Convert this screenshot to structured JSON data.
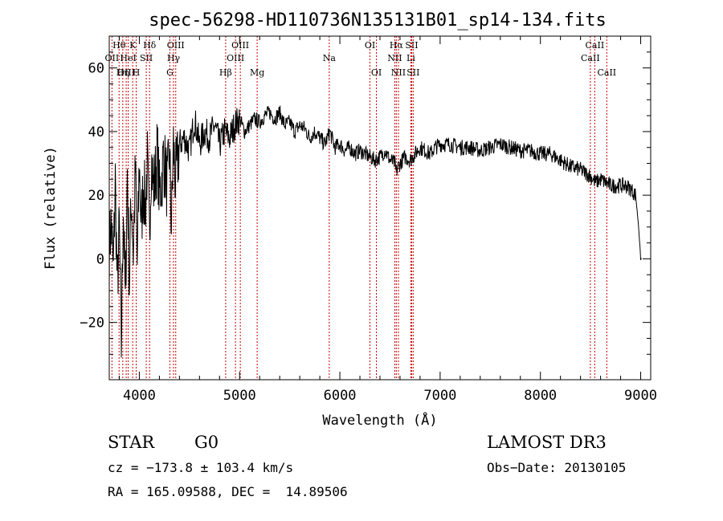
{
  "chart_data": {
    "type": "line",
    "title": "spec-56298-HD110736N135131B01_sp14-134.fits",
    "xlabel": "Wavelength (Å)",
    "ylabel": "Flux (relative)",
    "xlim": [
      3700,
      9100
    ],
    "ylim": [
      -38,
      70
    ],
    "xticks": [
      4000,
      5000,
      6000,
      7000,
      8000,
      9000
    ],
    "yticks": [
      -20,
      0,
      20,
      40,
      60
    ],
    "series": [
      {
        "name": "spectrum",
        "x": [
          3700,
          3720,
          3740,
          3760,
          3780,
          3800,
          3820,
          3840,
          3860,
          3880,
          3900,
          3920,
          3940,
          3960,
          3980,
          4000,
          4020,
          4040,
          4060,
          4080,
          4100,
          4120,
          4140,
          4160,
          4180,
          4200,
          4220,
          4240,
          4260,
          4280,
          4300,
          4320,
          4340,
          4360,
          4380,
          4400,
          4450,
          4500,
          4550,
          4600,
          4650,
          4700,
          4750,
          4800,
          4850,
          4900,
          4950,
          5000,
          5050,
          5100,
          5150,
          5200,
          5250,
          5300,
          5350,
          5400,
          5450,
          5500,
          5550,
          5600,
          5650,
          5700,
          5750,
          5800,
          5850,
          5900,
          5950,
          6000,
          6050,
          6100,
          6150,
          6200,
          6250,
          6300,
          6350,
          6400,
          6450,
          6500,
          6550,
          6562,
          6580,
          6600,
          6650,
          6700,
          6750,
          6800,
          6850,
          6900,
          6950,
          7000,
          7100,
          7200,
          7300,
          7400,
          7500,
          7600,
          7700,
          7800,
          7900,
          8000,
          8100,
          8200,
          8300,
          8400,
          8450,
          8500,
          8550,
          8600,
          8650,
          8700,
          8750,
          8800,
          8850,
          8900,
          8950,
          8980,
          9000,
          9010
        ],
        "y": [
          3,
          12,
          -5,
          25,
          -10,
          10,
          -28,
          18,
          -15,
          28,
          -8,
          20,
          2,
          28,
          -2,
          30,
          10,
          24,
          16,
          30,
          8,
          32,
          22,
          26,
          34,
          20,
          24,
          32,
          28,
          22,
          34,
          10,
          36,
          24,
          30,
          36,
          38,
          34,
          44,
          36,
          40,
          38,
          42,
          36,
          40,
          38,
          42,
          44,
          40,
          42,
          44,
          43,
          45,
          46,
          44,
          46,
          42,
          43,
          40,
          42,
          41,
          38,
          40,
          38,
          36,
          40,
          35,
          36,
          34,
          35,
          33,
          34,
          33,
          32,
          31,
          32,
          34,
          31,
          30,
          27,
          29,
          30,
          32,
          31,
          33,
          35,
          34,
          33,
          35,
          36,
          36,
          35,
          35,
          34,
          35,
          36,
          35,
          34,
          34,
          33,
          33,
          31,
          29,
          28,
          27,
          26,
          24,
          25,
          24,
          23,
          23,
          23,
          23,
          22,
          20,
          10,
          0,
          0
        ]
      }
    ],
    "emission_lines": [
      {
        "label": "Hθ",
        "wave": 3798,
        "row": 0
      },
      {
        "label": "OII",
        "wave": 3727,
        "row": 1
      },
      {
        "label": "OIII",
        "wave": 3869,
        "row": 2
      },
      {
        "label": "K",
        "wave": 3934,
        "row": 0
      },
      {
        "label": "HeI",
        "wave": 3889,
        "row": 1
      },
      {
        "label": "Hη",
        "wave": 3835,
        "row": 2
      },
      {
        "label": "SII",
        "wave": 4069,
        "row": 1
      },
      {
        "label": "H",
        "wave": 3969,
        "row": 2
      },
      {
        "label": "Hδ",
        "wave": 4102,
        "row": 0
      },
      {
        "label": "OIII",
        "wave": 4363,
        "row": 0
      },
      {
        "label": "Hγ",
        "wave": 4341,
        "row": 1
      },
      {
        "label": "G",
        "wave": 4305,
        "row": 2
      },
      {
        "label": "OIII",
        "wave": 5007,
        "row": 0
      },
      {
        "label": "OIII",
        "wave": 4959,
        "row": 1
      },
      {
        "label": "Hβ",
        "wave": 4861,
        "row": 2
      },
      {
        "label": "Mg",
        "wave": 5175,
        "row": 2
      },
      {
        "label": "Na",
        "wave": 5894,
        "row": 1
      },
      {
        "label": "OI",
        "wave": 6300,
        "row": 0
      },
      {
        "label": "OI",
        "wave": 6364,
        "row": 2
      },
      {
        "label": "Hα",
        "wave": 6563,
        "row": 0
      },
      {
        "label": "SII",
        "wave": 6716,
        "row": 0
      },
      {
        "label": "NII",
        "wave": 6548,
        "row": 1
      },
      {
        "label": "Li",
        "wave": 6708,
        "row": 1
      },
      {
        "label": "NII",
        "wave": 6584,
        "row": 2
      },
      {
        "label": "SII",
        "wave": 6731,
        "row": 2
      },
      {
        "label": "CaII",
        "wave": 8542,
        "row": 0
      },
      {
        "label": "CaII",
        "wave": 8498,
        "row": 1
      },
      {
        "label": "CaII",
        "wave": 8662,
        "row": 2
      }
    ]
  },
  "info": {
    "class": "STAR",
    "subclass": "G0",
    "survey": "LAMOST DR3",
    "cz": "cz = −173.8 ± 103.4 km/s",
    "obs_date": "Obs−Date: 20130105",
    "radec": "RA = 165.09588, DEC =  14.89506"
  },
  "colors": {
    "line_marker": "#cc0000",
    "spectrum": "#000000"
  }
}
